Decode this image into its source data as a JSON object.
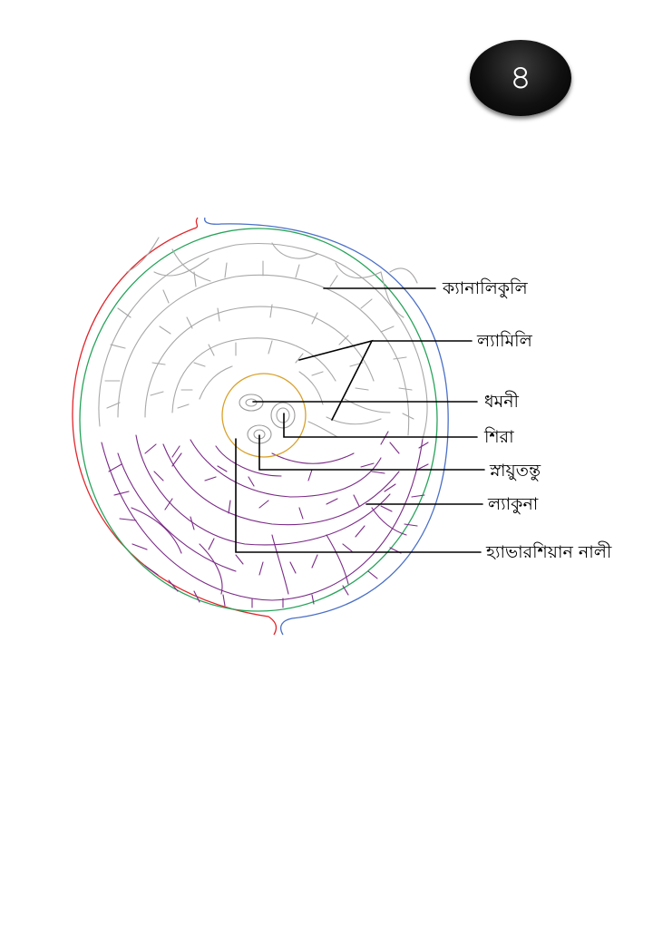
{
  "badge": {
    "number": "৪"
  },
  "labels": {
    "canaliculi": "ক্যানালিকুলি",
    "lamellae": "ল্যামিলি",
    "artery": "ধমনী",
    "vein": "শিরা",
    "nerve": "স্নায়ুতন্তু",
    "lacuna": "ল্যাকুনা",
    "haversian_canal": "হ্যাভারশিয়ান নালী"
  },
  "colors": {
    "outer_left_arc": "#e0262b",
    "outer_right_arc": "#4a6fc7",
    "green_ring": "#27a35a",
    "canal_ring": "#d9a02a",
    "upper_canaliculi": "#a8a8a8",
    "lower_canaliculi": "#7a2a86",
    "leader_lines": "#000000"
  }
}
